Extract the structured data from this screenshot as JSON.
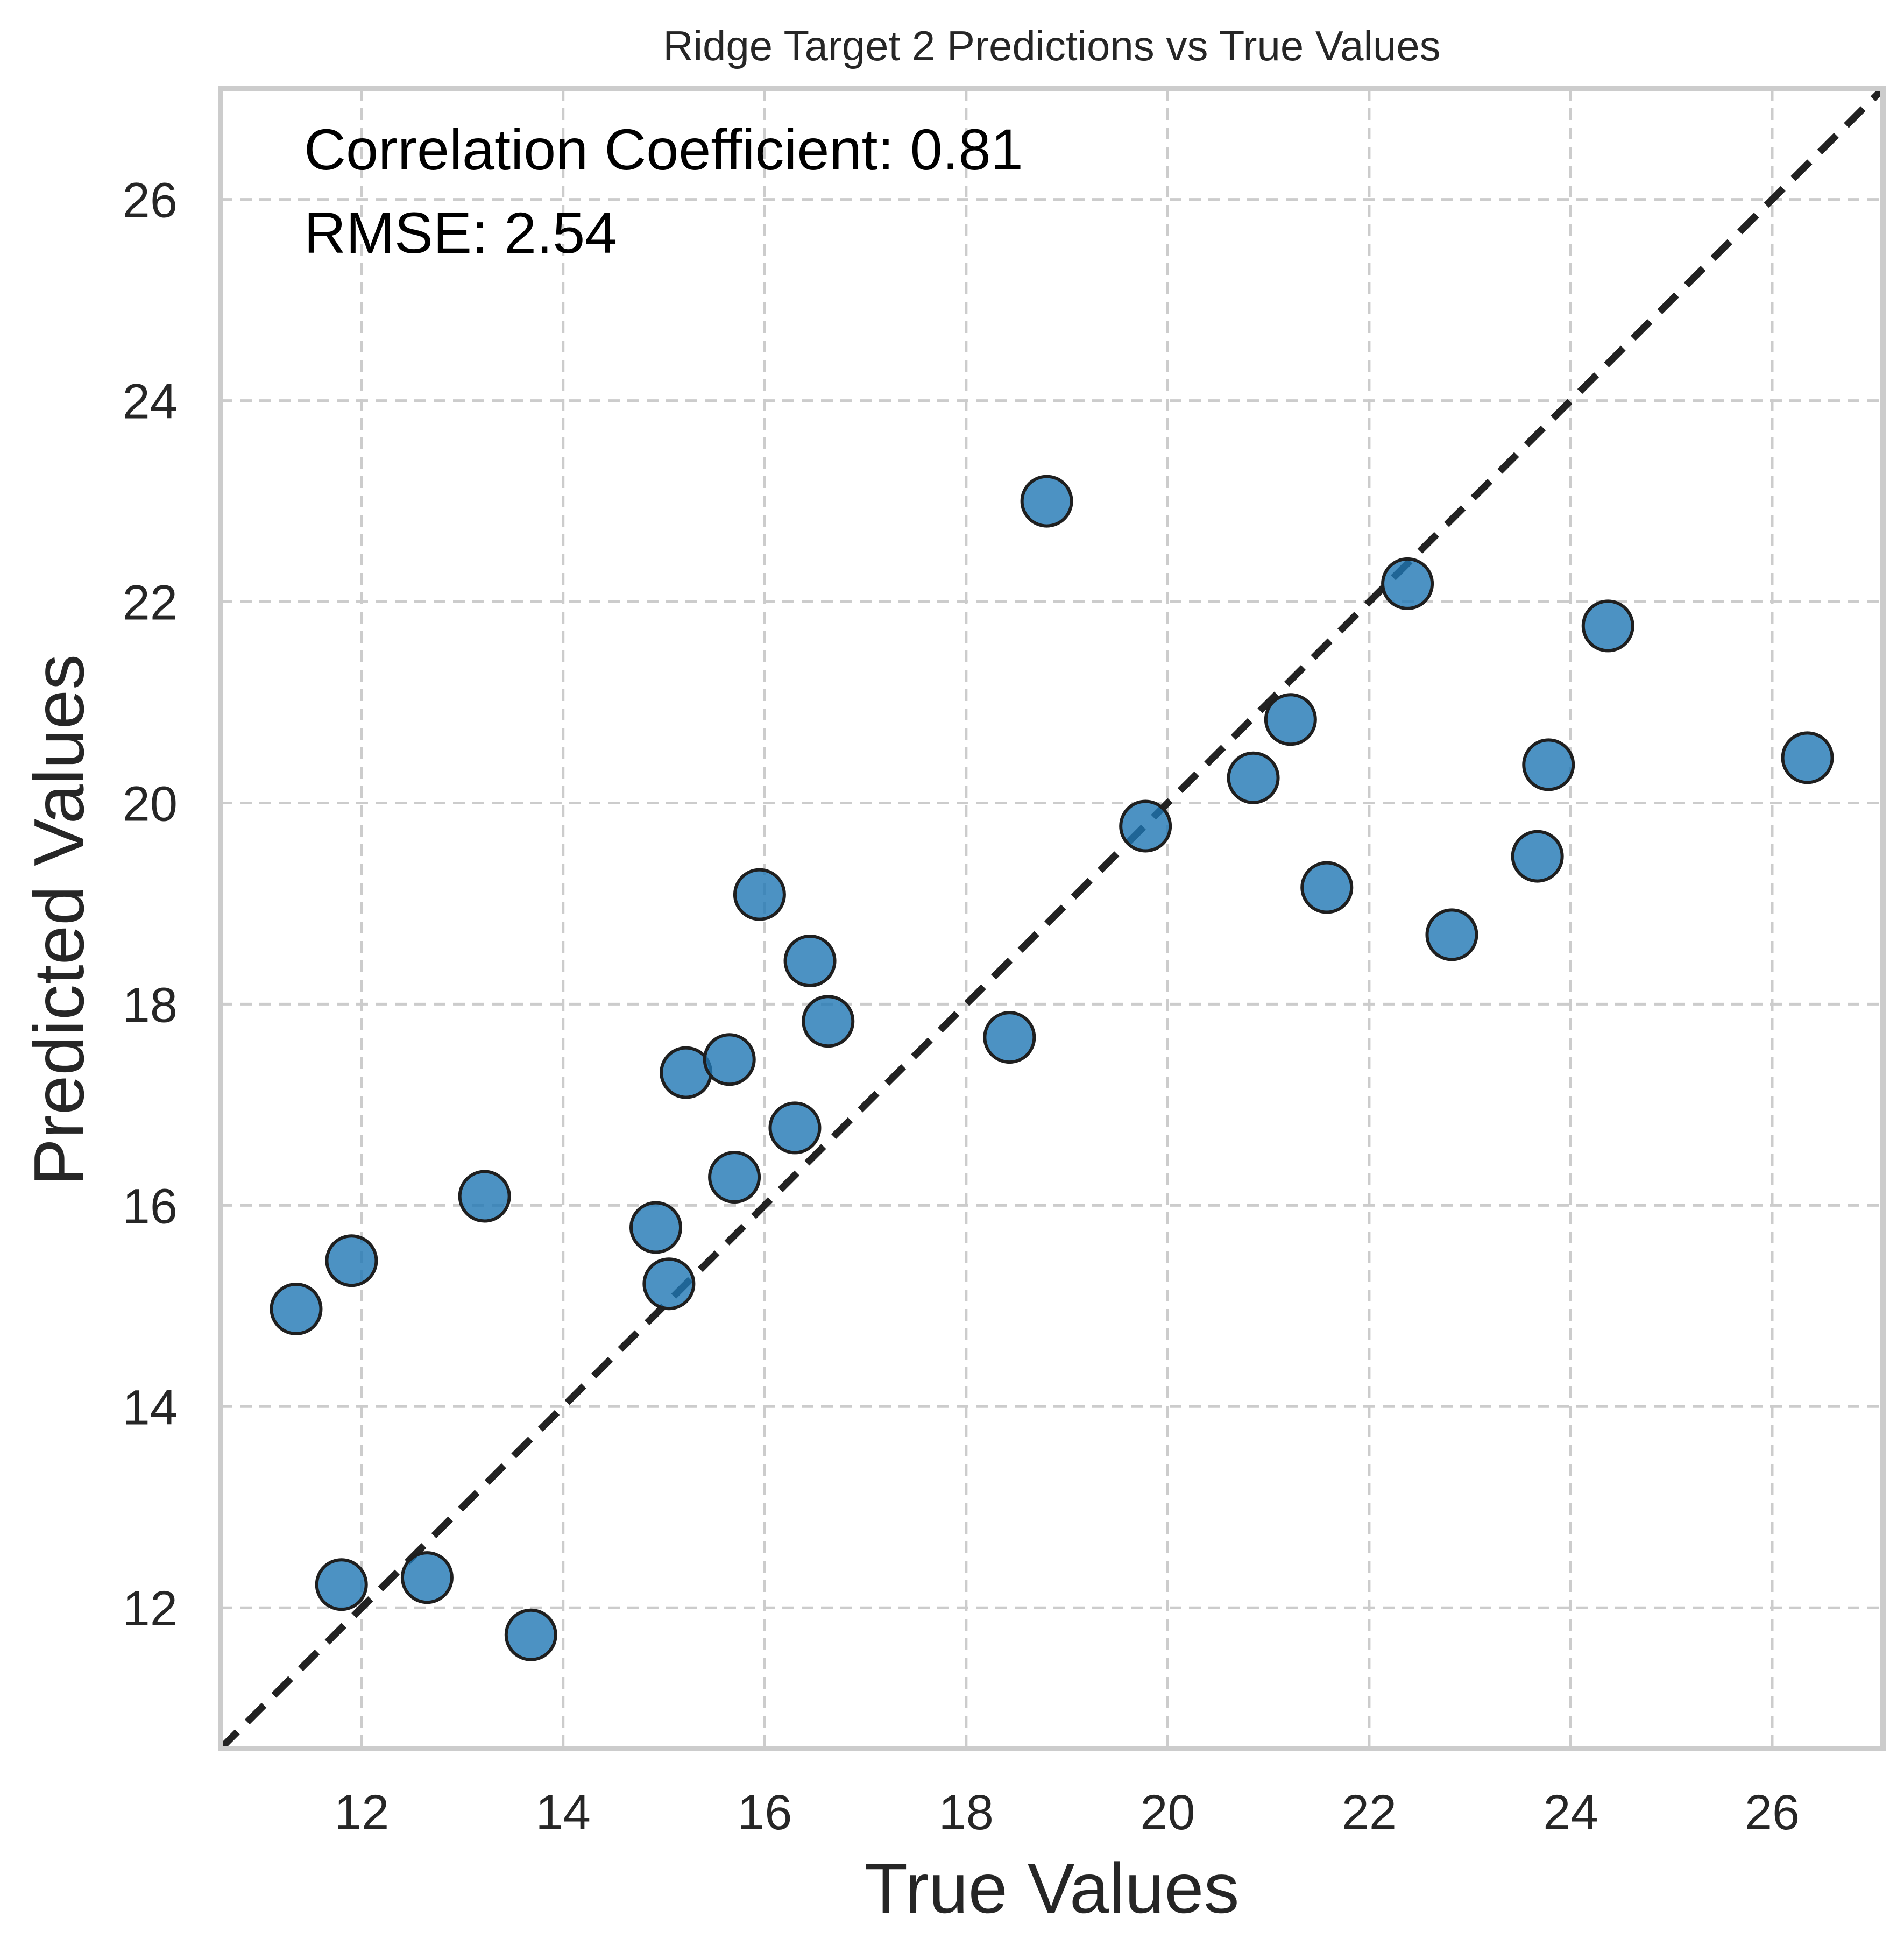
{
  "chart_data": {
    "type": "scatter",
    "title": "Ridge Target 2 Predictions vs True Values",
    "xlabel": "True Values",
    "ylabel": "Predicted Values",
    "xlim": [
      10.6,
      27.1
    ],
    "ylim": [
      10.6,
      27.1
    ],
    "xticks": [
      12,
      14,
      16,
      18,
      20,
      22,
      24,
      26
    ],
    "yticks": [
      12,
      14,
      16,
      18,
      20,
      22,
      24,
      26
    ],
    "grid": true,
    "grid_style": "dashed",
    "identity_line": true,
    "annotations": [
      "Correlation Coefficient: 0.81",
      "RMSE: 2.54"
    ],
    "marker_color": "#1f77b4",
    "points": [
      {
        "x": 11.35,
        "y": 14.97
      },
      {
        "x": 11.9,
        "y": 15.45
      },
      {
        "x": 11.8,
        "y": 12.23
      },
      {
        "x": 12.65,
        "y": 12.3
      },
      {
        "x": 13.22,
        "y": 16.09
      },
      {
        "x": 13.68,
        "y": 11.73
      },
      {
        "x": 14.92,
        "y": 15.78
      },
      {
        "x": 15.05,
        "y": 15.22
      },
      {
        "x": 15.22,
        "y": 17.32
      },
      {
        "x": 15.65,
        "y": 17.45
      },
      {
        "x": 15.7,
        "y": 16.28
      },
      {
        "x": 15.95,
        "y": 19.09
      },
      {
        "x": 16.3,
        "y": 16.77
      },
      {
        "x": 16.45,
        "y": 18.43
      },
      {
        "x": 16.63,
        "y": 17.83
      },
      {
        "x": 18.43,
        "y": 17.67
      },
      {
        "x": 18.8,
        "y": 23.0
      },
      {
        "x": 19.78,
        "y": 19.77
      },
      {
        "x": 20.85,
        "y": 20.25
      },
      {
        "x": 21.22,
        "y": 20.83
      },
      {
        "x": 21.58,
        "y": 19.16
      },
      {
        "x": 22.38,
        "y": 22.18
      },
      {
        "x": 22.82,
        "y": 18.69
      },
      {
        "x": 23.67,
        "y": 19.47
      },
      {
        "x": 23.78,
        "y": 20.38
      },
      {
        "x": 24.37,
        "y": 21.76
      },
      {
        "x": 26.35,
        "y": 20.45
      }
    ]
  }
}
